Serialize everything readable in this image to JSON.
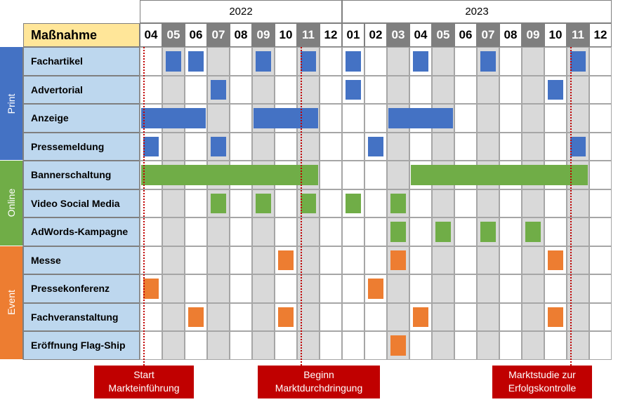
{
  "chart_data": {
    "type": "gantt",
    "header_label": "Maßnahme",
    "years": [
      {
        "label": "2022",
        "months": 9
      },
      {
        "label": "2023",
        "months": 12
      }
    ],
    "months": [
      {
        "label": "04",
        "dark": false
      },
      {
        "label": "05",
        "dark": true
      },
      {
        "label": "06",
        "dark": false
      },
      {
        "label": "07",
        "dark": true
      },
      {
        "label": "08",
        "dark": false
      },
      {
        "label": "09",
        "dark": true
      },
      {
        "label": "10",
        "dark": false
      },
      {
        "label": "11",
        "dark": true
      },
      {
        "label": "12",
        "dark": false
      },
      {
        "label": "01",
        "dark": false
      },
      {
        "label": "02",
        "dark": false
      },
      {
        "label": "03",
        "dark": true
      },
      {
        "label": "04",
        "dark": false
      },
      {
        "label": "05",
        "dark": true
      },
      {
        "label": "06",
        "dark": false
      },
      {
        "label": "07",
        "dark": true
      },
      {
        "label": "08",
        "dark": false
      },
      {
        "label": "09",
        "dark": true
      },
      {
        "label": "10",
        "dark": false
      },
      {
        "label": "11",
        "dark": true
      },
      {
        "label": "12",
        "dark": false
      }
    ],
    "categories": [
      {
        "name": "Print",
        "color": "#4472c4",
        "rows": [
          0,
          3
        ]
      },
      {
        "name": "Online",
        "color": "#70ad47",
        "rows": [
          4,
          6
        ]
      },
      {
        "name": "Event",
        "color": "#ed7d31",
        "rows": [
          7,
          10
        ]
      }
    ],
    "tasks": [
      {
        "name": "Fachartikel",
        "color": "#4472c4",
        "bars": [
          [
            1,
            1
          ],
          [
            2,
            2
          ],
          [
            5,
            5
          ],
          [
            7,
            7
          ],
          [
            9,
            9
          ],
          [
            12,
            12
          ],
          [
            15,
            15
          ],
          [
            19,
            19
          ]
        ]
      },
      {
        "name": "Advertorial",
        "color": "#4472c4",
        "bars": [
          [
            3,
            3
          ],
          [
            9,
            9
          ],
          [
            18,
            18
          ]
        ]
      },
      {
        "name": "Anzeige",
        "color": "#4472c4",
        "bars": [
          [
            0,
            2
          ],
          [
            5,
            7
          ],
          [
            11,
            13
          ]
        ]
      },
      {
        "name": "Pressemeldung",
        "color": "#4472c4",
        "bars": [
          [
            0,
            0
          ],
          [
            3,
            3
          ],
          [
            10,
            10
          ],
          [
            19,
            19
          ]
        ]
      },
      {
        "name": "Bannerschaltung",
        "color": "#70ad47",
        "bars": [
          [
            0,
            7
          ],
          [
            12,
            19
          ]
        ]
      },
      {
        "name": "Video Social Media",
        "color": "#70ad47",
        "bars": [
          [
            3,
            3
          ],
          [
            5,
            5
          ],
          [
            7,
            7
          ],
          [
            9,
            9
          ],
          [
            11,
            11
          ]
        ]
      },
      {
        "name": "AdWords-Kampagne",
        "color": "#70ad47",
        "bars": [
          [
            11,
            11
          ],
          [
            13,
            13
          ],
          [
            15,
            15
          ],
          [
            17,
            17
          ]
        ]
      },
      {
        "name": "Messe",
        "color": "#ed7d31",
        "bars": [
          [
            6,
            6
          ],
          [
            11,
            11
          ],
          [
            18,
            18
          ]
        ]
      },
      {
        "name": "Pressekonferenz",
        "color": "#ed7d31",
        "bars": [
          [
            0,
            0
          ],
          [
            10,
            10
          ]
        ]
      },
      {
        "name": "Fachveranstaltung",
        "color": "#ed7d31",
        "bars": [
          [
            2,
            2
          ],
          [
            6,
            6
          ],
          [
            12,
            12
          ],
          [
            18,
            18
          ]
        ]
      },
      {
        "name": "Eröffnung Flag-Ship",
        "color": "#ed7d31",
        "bars": [
          [
            11,
            11
          ]
        ]
      }
    ],
    "milestones": [
      {
        "line1": "Start",
        "line2": "Markteinführung",
        "month_index": 0
      },
      {
        "line1": "Beginn",
        "line2": "Marktdurchdringung",
        "month_index": 7
      },
      {
        "line1": "Marktstudie zur",
        "line2": "Erfolgskontrolle",
        "month_index": 19
      }
    ],
    "colors": {
      "header_yellow": "#ffe699",
      "label_blue": "#bdd7ee",
      "dark_month": "#7f7f7f",
      "shade": "#d9d9d9",
      "grid": "#7f7f7f",
      "milestone_red": "#c00000"
    }
  }
}
